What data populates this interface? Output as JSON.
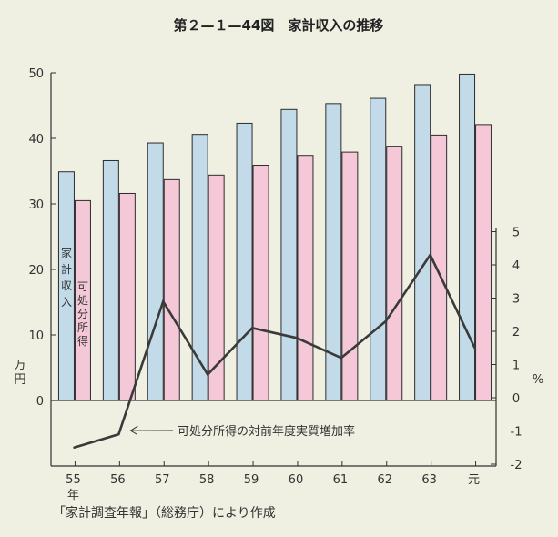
{
  "title": "第２—１—44図　家計収入の推移",
  "source_note": "「家計調査年報」（総務庁）により作成",
  "colors": {
    "income_bar": "#c3dbe9",
    "disposable_bar": "#f4c8d7",
    "line": "#3a3a3a",
    "background": "#efefe2"
  },
  "chart_data": {
    "type": "bar",
    "categories": [
      "55",
      "56",
      "57",
      "58",
      "59",
      "60",
      "61",
      "62",
      "63",
      "元"
    ],
    "x_suffix": "年",
    "left_axis": {
      "unit": "万円",
      "ylim": [
        0,
        50
      ],
      "ticks": [
        "0",
        "10",
        "20",
        "30",
        "40",
        "50"
      ]
    },
    "right_axis": {
      "unit": "%",
      "ylim": [
        -2,
        5
      ],
      "ticks": [
        "-2",
        "-1",
        "0",
        "1",
        "2",
        "3",
        "4",
        "5"
      ]
    },
    "series": [
      {
        "name": "家計収入",
        "axis": "left",
        "kind": "bar",
        "values": [
          34.9,
          36.6,
          39.3,
          40.6,
          42.3,
          44.4,
          45.3,
          46.1,
          48.2,
          49.8
        ]
      },
      {
        "name": "可処分所得",
        "axis": "left",
        "kind": "bar",
        "values": [
          30.5,
          31.6,
          33.7,
          34.4,
          35.9,
          37.4,
          37.9,
          38.8,
          40.5,
          42.1
        ]
      },
      {
        "name": "可処分所得の対前年度実質増加率",
        "axis": "right",
        "kind": "line",
        "values": [
          -1.5,
          -1.1,
          2.9,
          0.7,
          2.1,
          1.8,
          1.2,
          2.3,
          4.3,
          1.5
        ]
      }
    ],
    "annotation": "可処分所得の対前年度実質増加率",
    "grid": false
  }
}
